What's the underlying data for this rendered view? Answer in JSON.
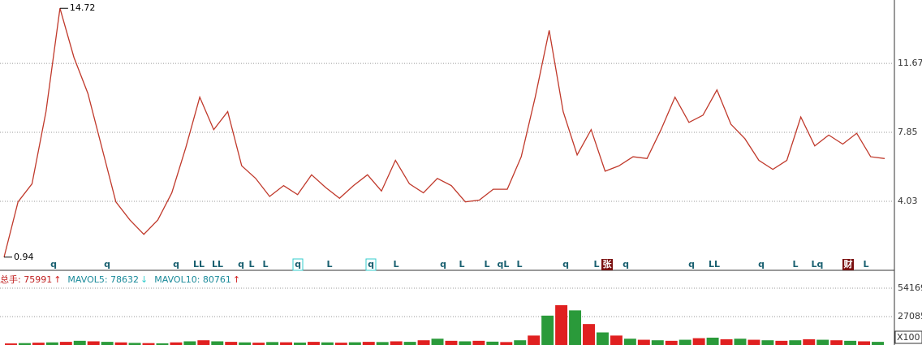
{
  "chart_data": [
    {
      "type": "line",
      "color": "#c0392b",
      "values": [
        0.94,
        4,
        5,
        9,
        14.72,
        12,
        10,
        7,
        4,
        3,
        2.2,
        3,
        4.5,
        7,
        9.8,
        8,
        9,
        6,
        5.3,
        4.3,
        4.9,
        4.4,
        5.5,
        4.8,
        4.2,
        4.9,
        5.5,
        4.6,
        6.3,
        5.0,
        4.5,
        5.3,
        4.9,
        4.0,
        4.1,
        4.7,
        4.7,
        6.5,
        9.8,
        13.5,
        9,
        6.6,
        8,
        5.7,
        6,
        6.5,
        6.4,
        8,
        9.8,
        8.4,
        8.8,
        10.2,
        8.3,
        7.5,
        6.3,
        5.8,
        6.3,
        8.7,
        7.1,
        7.7,
        7.2,
        7.8,
        6.5,
        6.4
      ],
      "ylim": [
        0.21,
        15.18
      ],
      "yticks": [
        4.03,
        7.85,
        11.67
      ],
      "grid": true,
      "high": 14.72,
      "low": 0.94,
      "markers": [
        "q",
        "q",
        "q",
        "LL",
        "LL",
        "q",
        "L",
        "L",
        "q",
        "L",
        "q",
        "L",
        "q",
        "L",
        "L",
        "qL",
        "L",
        "q",
        "L",
        "张",
        "q",
        "q",
        "LL",
        "q",
        "L",
        "Lq",
        "财",
        "L"
      ]
    },
    {
      "type": "bar",
      "color": "#e02020",
      "values": [
        1500,
        1800,
        2200,
        2500,
        3000,
        4000,
        3500,
        3000,
        2500,
        2000,
        1800,
        1600,
        2500,
        3500,
        4500,
        3500,
        3000,
        2500,
        2200,
        2800,
        2600,
        2300,
        3000,
        2500,
        2200,
        2600,
        3000,
        2800,
        3500,
        3000,
        4500,
        6000,
        4000,
        3500,
        4000,
        3200,
        2800,
        4500,
        9000,
        28000,
        38000,
        33000,
        20000,
        12000,
        9000,
        6000,
        5000,
        4500,
        4000,
        5000,
        6500,
        7000,
        5500,
        6000,
        5000,
        4500,
        4000,
        4500,
        5500,
        5000,
        4500,
        4000,
        3500,
        3000
      ],
      "ylim": [
        0,
        68100
      ],
      "yticks": [
        27085,
        54169
      ],
      "grid": true,
      "unit_label": "X100",
      "legend": [
        "总手: 75991",
        "MAVOL5: 78632",
        "MAVOL10: 80761"
      ],
      "legend_trends": [
        "↑",
        "↓",
        "↑"
      ]
    }
  ]
}
